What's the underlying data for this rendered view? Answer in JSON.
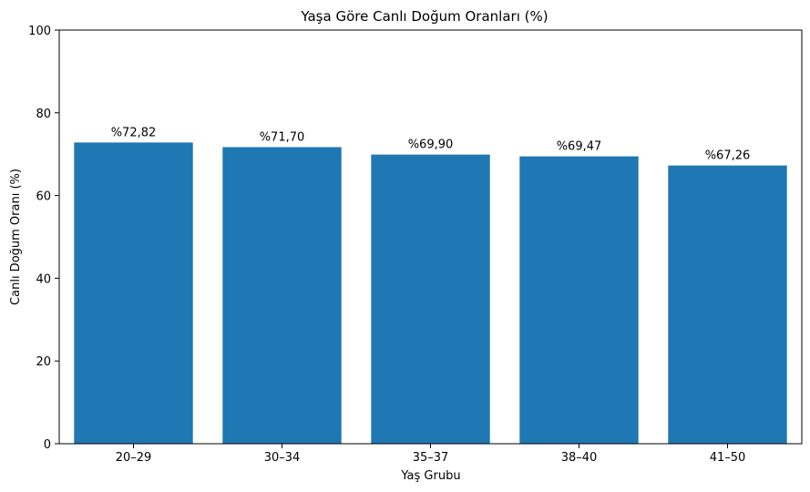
{
  "chart_data": {
    "type": "bar",
    "title": "Yaşa Göre Canlı Doğum Oranları (%)",
    "xlabel": "Yaş Grubu",
    "ylabel": "Canlı Doğum Oranı (%)",
    "categories": [
      "20–29",
      "30–34",
      "35–37",
      "38–40",
      "41–50"
    ],
    "values": [
      72.82,
      71.7,
      69.9,
      69.47,
      67.26
    ],
    "data_labels": [
      "%72,82",
      "%71,70",
      "%69,90",
      "%69,47",
      "%67,26"
    ],
    "ylim": [
      0,
      100
    ],
    "yticks": [
      0,
      20,
      40,
      60,
      80,
      100
    ],
    "grid": false,
    "bar_color": "#1f77b4"
  }
}
